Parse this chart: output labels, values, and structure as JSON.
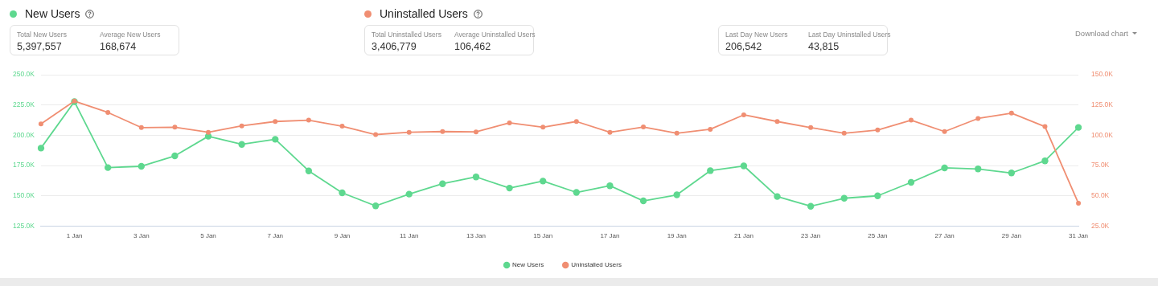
{
  "chart_data": {
    "type": "line",
    "categories": [
      null,
      "1 Jan",
      null,
      "3 Jan",
      null,
      "5 Jan",
      null,
      "7 Jan",
      null,
      "9 Jan",
      null,
      "11 Jan",
      null,
      "13 Jan",
      null,
      "15 Jan",
      null,
      "17 Jan",
      null,
      "19 Jan",
      null,
      "21 Jan",
      null,
      "23 Jan",
      null,
      "25 Jan",
      null,
      "27 Jan",
      null,
      "29 Jan",
      null,
      "31 Jan"
    ],
    "series": [
      {
        "name": "New Users",
        "color": "#5ed88f",
        "values": [
          189400,
          227800,
          173300,
          174400,
          183000,
          199200,
          192500,
          196700,
          170600,
          152500,
          141700,
          151400,
          160000,
          165600,
          156400,
          162200,
          152800,
          158300,
          145800,
          150800,
          170800,
          174700,
          149400,
          141400,
          148000,
          150000,
          161100,
          173100,
          172200,
          168900,
          178900,
          206500
        ]
      },
      {
        "name": "Uninstalled Users",
        "color": "#f08e72",
        "axis": "y2",
        "values": [
          109400,
          128300,
          118900,
          106400,
          106700,
          102500,
          107800,
          111400,
          112500,
          107500,
          100600,
          102500,
          103100,
          102800,
          110300,
          106700,
          111400,
          102500,
          106900,
          101700,
          105000,
          116900,
          111400,
          106400,
          101700,
          104400,
          112500,
          103100,
          113900,
          118300,
          107200,
          43800
        ]
      }
    ],
    "ylim": [
      125000,
      250000
    ],
    "yticks": [
      {
        "value": 125000,
        "label": "125.0K"
      },
      {
        "value": 150000,
        "label": "150.0K"
      },
      {
        "value": 175000,
        "label": "175.0K"
      },
      {
        "value": 200000,
        "label": "200.0K"
      },
      {
        "value": 225000,
        "label": "225.0K"
      },
      {
        "value": 250000,
        "label": "250.0K"
      }
    ],
    "y2lim": [
      25000,
      150000
    ],
    "y2ticks": [
      {
        "value": 25000,
        "label": "25.0K"
      },
      {
        "value": 50000,
        "label": "50.0K"
      },
      {
        "value": 75000,
        "label": "75.0K"
      },
      {
        "value": 100000,
        "label": "100.0K"
      },
      {
        "value": 125000,
        "label": "125.0K"
      },
      {
        "value": 150000,
        "label": "150.0K"
      }
    ],
    "grid": "y",
    "legend": "bottom",
    "marker": "circle",
    "line_style": "solid",
    "annotations": [
      "Total New Users",
      "5,397,557",
      "Average New Users",
      "168,674",
      "Total Uninstalled Users",
      "3,406,779",
      "Average Uninstalled Users",
      "106,462",
      "Last Day New Users",
      "206,542",
      "Last Day Uninstalled Users",
      "43,815",
      "Download chart"
    ]
  }
}
